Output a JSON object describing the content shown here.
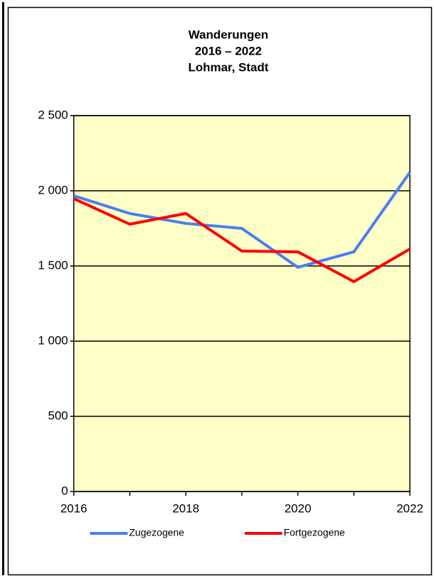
{
  "chart_data": {
    "type": "line",
    "title": [
      "Wanderungen",
      "2016 – 2022",
      "Lohmar, Stadt"
    ],
    "x": [
      2016,
      2017,
      2018,
      2019,
      2020,
      2021,
      2022
    ],
    "series": [
      {
        "name": "Zugezogene",
        "color": "#4a7ff0",
        "values": [
          1967,
          1849,
          1783,
          1750,
          1491,
          1594,
          2123
        ]
      },
      {
        "name": "Fortgezogene",
        "color": "#ff0000",
        "values": [
          1948,
          1778,
          1849,
          1599,
          1594,
          1396,
          1613
        ]
      }
    ],
    "xlim": [
      2016,
      2022
    ],
    "xticks": [
      2016,
      2018,
      2020,
      2022
    ],
    "ylim": [
      0,
      2500
    ],
    "yticks": [
      0,
      500,
      {
        "value": 1000,
        "label": "1 000"
      },
      {
        "value": 1500,
        "label": "1 500"
      },
      {
        "value": 2000,
        "label": "2 000"
      },
      {
        "value": 2500,
        "label": "2 500"
      }
    ],
    "grid": true,
    "legend": "bottom"
  }
}
